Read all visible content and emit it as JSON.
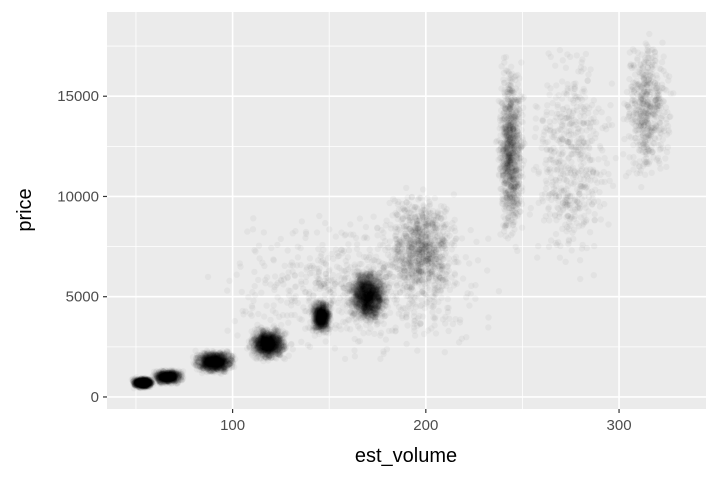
{
  "chart_data": {
    "type": "scatter",
    "title": "",
    "xlabel": "est_volume",
    "ylabel": "price",
    "xlim": [
      35,
      345
    ],
    "ylim": [
      -600,
      19200
    ],
    "x_ticks": [
      100,
      200,
      300
    ],
    "x_tick_labels": [
      "100",
      "200",
      "300"
    ],
    "x_minor_ticks": [
      50,
      150,
      250
    ],
    "y_ticks": [
      0,
      5000,
      10000,
      15000
    ],
    "y_tick_labels": [
      "0",
      "5000",
      "10000",
      "15000"
    ],
    "y_minor_ticks": [
      2500,
      7500,
      12500,
      17500
    ],
    "grid": true,
    "legend": "none",
    "point_color": "#000000",
    "point_alpha": 0.035,
    "panel_background": "#ebebeb",
    "grid_color": "#ffffff",
    "series": [
      {
        "clusters": [
          {
            "x": [
              47,
              60
            ],
            "y": [
              400,
              1000
            ],
            "weight": 10
          },
          {
            "x": [
              58,
              75
            ],
            "y": [
              600,
              1400
            ],
            "weight": 9
          },
          {
            "x": [
              78,
              103
            ],
            "y": [
              1100,
              2400
            ],
            "weight": 12
          },
          {
            "x": [
              107,
              130
            ],
            "y": [
              1700,
              3600
            ],
            "weight": 13
          },
          {
            "x": [
              140,
              152
            ],
            "y": [
              3000,
              5000
            ],
            "weight": 9
          },
          {
            "x": [
              158,
              182
            ],
            "y": [
              3500,
              6500
            ],
            "weight": 16
          },
          {
            "x": [
              175,
              220
            ],
            "y": [
              4000,
              11000
            ],
            "weight": 10
          },
          {
            "x": [
              236,
              252
            ],
            "y": [
              7000,
              17500
            ],
            "weight": 11
          },
          {
            "x": [
              250,
              300
            ],
            "y": [
              5000,
              18500
            ],
            "weight": 6
          },
          {
            "x": [
              300,
              330
            ],
            "y": [
              10000,
              18800
            ],
            "weight": 6
          },
          {
            "x": [
              80,
              250
            ],
            "y": [
              1000,
              10000
            ],
            "weight": 8
          }
        ]
      }
    ]
  }
}
